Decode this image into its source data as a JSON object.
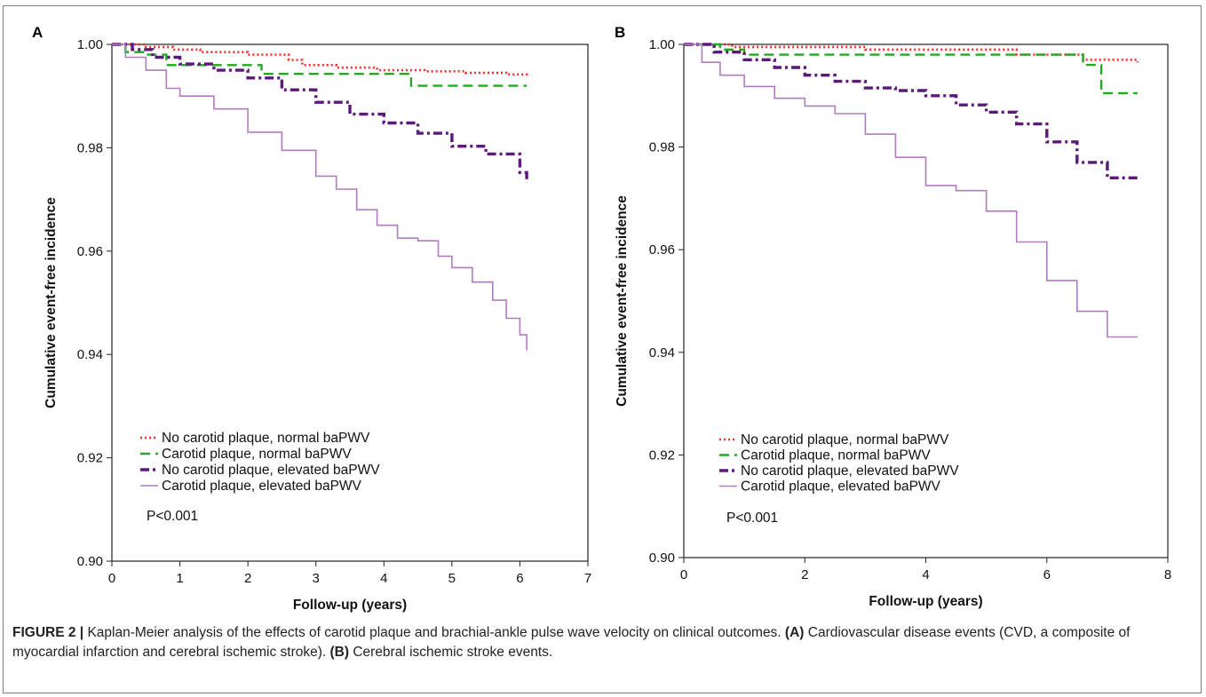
{
  "chart_data": [
    {
      "panel": "A",
      "type": "line",
      "xlabel": "Follow-up (years)",
      "ylabel": "Cumulative event-free incidence",
      "xlim": [
        0,
        7
      ],
      "ylim": [
        0.9,
        1.0
      ],
      "xticks": [
        "0",
        "1",
        "2",
        "3",
        "4",
        "5",
        "6",
        "7"
      ],
      "yticks": [
        "0.90",
        "0.92",
        "0.94",
        "0.96",
        "0.98",
        "1.00"
      ],
      "legend_position": "bottom-left",
      "annotation": "P<0.001",
      "series": [
        {
          "name": "No carotid plaque, normal baPWV",
          "color": "#ff2a2a",
          "dash": "dotted",
          "x": [
            0,
            0.5,
            0.9,
            1.3,
            2.0,
            2.6,
            2.8,
            3.3,
            3.9,
            4.6,
            5.2,
            5.8,
            6.1
          ],
          "y": [
            1.0,
            0.9995,
            0.999,
            0.9985,
            0.998,
            0.997,
            0.996,
            0.9955,
            0.995,
            0.9948,
            0.9945,
            0.9942,
            0.994
          ]
        },
        {
          "name": "Carotid plaque, normal baPWV",
          "color": "#23a823",
          "dash": "dashed",
          "x": [
            0,
            0.2,
            0.5,
            0.8,
            2.2,
            4.4,
            6.1
          ],
          "y": [
            1.0,
            0.9985,
            0.998,
            0.996,
            0.9943,
            0.992,
            0.992
          ]
        },
        {
          "name": "No carotid plaque, elevated baPWV",
          "color": "#5b1a7a",
          "dash": "dashdot",
          "x": [
            0,
            0.3,
            0.6,
            1.0,
            1.5,
            2.0,
            2.5,
            3.0,
            3.5,
            4.0,
            4.5,
            5.0,
            5.5,
            6.0,
            6.1
          ],
          "y": [
            1.0,
            0.999,
            0.9975,
            0.9962,
            0.995,
            0.9935,
            0.9912,
            0.9888,
            0.9865,
            0.9848,
            0.9828,
            0.9803,
            0.9788,
            0.9752,
            0.9732
          ]
        },
        {
          "name": "Carotid plaque, elevated baPWV",
          "color": "#b07cc0",
          "dash": "solid",
          "x": [
            0,
            0.2,
            0.5,
            0.8,
            1.0,
            1.5,
            2.0,
            2.5,
            3.0,
            3.3,
            3.6,
            3.9,
            4.2,
            4.5,
            4.8,
            5.0,
            5.3,
            5.6,
            5.8,
            6.0,
            6.1
          ],
          "y": [
            1.0,
            0.9975,
            0.995,
            0.9915,
            0.99,
            0.9875,
            0.983,
            0.9795,
            0.9745,
            0.972,
            0.968,
            0.965,
            0.9625,
            0.962,
            0.959,
            0.9568,
            0.954,
            0.9505,
            0.947,
            0.9438,
            0.9408
          ]
        }
      ]
    },
    {
      "panel": "B",
      "type": "line",
      "xlabel": "Follow-up (years)",
      "ylabel": "Cumulative event-free incidence",
      "xlim": [
        0,
        8
      ],
      "ylim": [
        0.9,
        1.0
      ],
      "xticks": [
        "0",
        "2",
        "4",
        "6",
        "8"
      ],
      "yticks": [
        "0.90",
        "0.92",
        "0.94",
        "0.96",
        "0.98",
        "1.00"
      ],
      "legend_position": "bottom-left",
      "annotation": "P<0.001",
      "series": [
        {
          "name": "No carotid plaque, normal baPWV",
          "color": "#ff2a2a",
          "dash": "dotted",
          "x": [
            0,
            0.8,
            3.0,
            5.5,
            6.6,
            7.5
          ],
          "y": [
            1.0,
            0.9995,
            0.999,
            0.998,
            0.997,
            0.9965
          ]
        },
        {
          "name": "Carotid plaque, normal baPWV",
          "color": "#23a823",
          "dash": "dashed",
          "x": [
            0,
            0.6,
            1.0,
            6.3,
            6.6,
            6.9,
            7.5
          ],
          "y": [
            1.0,
            0.999,
            0.998,
            0.998,
            0.996,
            0.9905,
            0.9905
          ]
        },
        {
          "name": "No carotid plaque, elevated baPWV",
          "color": "#5b1a7a",
          "dash": "dashdot",
          "x": [
            0,
            0.5,
            1.0,
            1.5,
            2.0,
            2.5,
            3.0,
            3.5,
            4.0,
            4.5,
            5.0,
            5.5,
            6.0,
            6.5,
            7.0,
            7.5
          ],
          "y": [
            1.0,
            0.9985,
            0.997,
            0.9955,
            0.994,
            0.9928,
            0.9915,
            0.991,
            0.99,
            0.9882,
            0.9868,
            0.9845,
            0.981,
            0.977,
            0.974,
            0.974
          ]
        },
        {
          "name": "Carotid plaque, elevated baPWV",
          "color": "#b07cc0",
          "dash": "solid",
          "x": [
            0,
            0.3,
            0.6,
            1.0,
            1.5,
            2.0,
            2.5,
            3.0,
            3.5,
            4.0,
            4.5,
            5.0,
            5.5,
            6.0,
            6.5,
            7.0,
            7.5
          ],
          "y": [
            1.0,
            0.9965,
            0.994,
            0.9918,
            0.9895,
            0.988,
            0.9865,
            0.9825,
            0.978,
            0.9725,
            0.9715,
            0.9675,
            0.9615,
            0.954,
            0.948,
            0.943,
            0.943
          ]
        }
      ]
    }
  ],
  "caption": {
    "label": "FIGURE 2 |",
    "text_1": " Kaplan-Meier analysis of the effects of carotid plaque and brachial-ankle pulse wave velocity on clinical outcomes. ",
    "label_a": "(A)",
    "text_2": " Cardiovascular disease events (CVD, a composite of myocardial infarction and cerebral ischemic stroke). ",
    "label_b": "(B)",
    "text_3": " Cerebral ischemic stroke events."
  }
}
